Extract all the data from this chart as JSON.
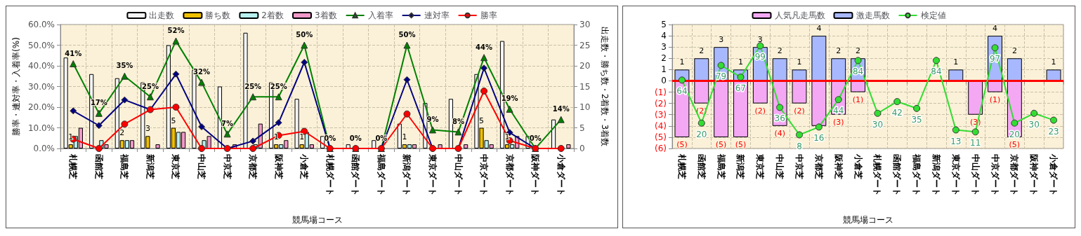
{
  "chart_data": [
    {
      "type": "bar",
      "xlabel": "競馬場コース",
      "ylabel": "勝率・連対率・入着率(%)",
      "y2label": "出走数・勝ち数・2着数・3着数",
      "categories": [
        "札幌芝",
        "函館芝",
        "福島芝",
        "新潟芝",
        "東京芝",
        "中山芝",
        "中京芝",
        "京都芝",
        "阪神芝",
        "小倉芝",
        "札幌ダート",
        "函館ダート",
        "福島ダート",
        "新潟ダート",
        "東京ダート",
        "中山ダート",
        "中京ダート",
        "京都ダート",
        "阪神ダート",
        "小倉ダート"
      ],
      "series": [
        {
          "name": "出走数",
          "type": "bar",
          "axis": "y2",
          "color": "#f4f4f4",
          "values": [
            22,
            18,
            17,
            16,
            25,
            19,
            15,
            28,
            16,
            12,
            3,
            1,
            2,
            6,
            11,
            12,
            18,
            26,
            3,
            7
          ]
        },
        {
          "name": "勝ち数",
          "type": "bar",
          "axis": "y2",
          "color": "#f0c000",
          "values": [
            1,
            0,
            2,
            3,
            5,
            0,
            0,
            0,
            1,
            1,
            0,
            0,
            0,
            1,
            0,
            0,
            5,
            1,
            0,
            0
          ],
          "value_labels": [
            "1",
            null,
            "2",
            "3",
            "5",
            null,
            null,
            null,
            "1",
            "1",
            null,
            null,
            null,
            "1",
            null,
            null,
            "5",
            "1",
            null,
            null
          ]
        },
        {
          "name": "2着数",
          "type": "bar",
          "axis": "y2",
          "color": "#b8f0f0",
          "values": [
            3,
            2,
            2,
            0,
            4,
            2,
            0,
            1,
            1,
            4,
            0,
            0,
            0,
            1,
            0,
            0,
            2,
            1,
            0,
            0
          ]
        },
        {
          "name": "3着数",
          "type": "bar",
          "axis": "y2",
          "color": "#f098c8",
          "values": [
            5,
            1,
            2,
            1,
            4,
            3,
            1,
            6,
            2,
            1,
            0,
            0,
            0,
            1,
            1,
            1,
            1,
            3,
            0,
            1
          ]
        },
        {
          "name": "入着率",
          "type": "line",
          "color": "#008000",
          "marker": "triangle",
          "values": [
            41,
            17,
            35,
            25,
            52,
            32,
            7,
            25,
            25,
            50,
            0,
            0,
            0,
            50,
            9,
            8,
            44,
            19,
            0,
            14
          ],
          "value_labels": [
            "41%",
            "17%",
            "35%",
            "25%",
            "52%",
            "32%",
            "7%",
            "25%",
            "25%",
            "50%",
            "0%",
            "0%",
            "0%",
            "50%",
            "9%",
            "8%",
            "44%",
            "19%",
            "0%",
            "14%"
          ]
        },
        {
          "name": "連対率",
          "type": "line",
          "color": "#000080",
          "marker": "diamond",
          "values": [
            18.2,
            11.1,
            23.5,
            18.8,
            36,
            10.5,
            0,
            3.6,
            12.5,
            41.7,
            0,
            0,
            0,
            33.3,
            0,
            0,
            38.9,
            7.7,
            0,
            0
          ]
        },
        {
          "name": "勝率",
          "type": "line",
          "color": "#ff0000",
          "marker": "circle",
          "values": [
            4.5,
            0,
            11.8,
            18.8,
            20,
            0,
            0,
            0,
            6.3,
            8.3,
            0,
            0,
            0,
            16.7,
            0,
            0,
            27.8,
            3.8,
            0,
            0
          ]
        }
      ],
      "ylim": [
        0,
        60
      ],
      "yticks": [
        {
          "value": 0,
          "label": "0.0%"
        },
        {
          "value": 10,
          "label": "10.0%"
        },
        {
          "value": 20,
          "label": "20.0%"
        },
        {
          "value": 30,
          "label": "30.0%"
        },
        {
          "value": 40,
          "label": "40.0%"
        },
        {
          "value": 50,
          "label": "50.0%"
        },
        {
          "value": 60,
          "label": "60.0%"
        }
      ],
      "y2lim": [
        0,
        30
      ],
      "y2ticks": [
        0,
        5,
        10,
        15,
        20,
        25,
        30
      ],
      "grid": true,
      "legend": "top"
    },
    {
      "type": "bar",
      "xlabel": "競馬場コース",
      "stacked": true,
      "categories": [
        "札幌芝",
        "函館芝",
        "福島芝",
        "新潟芝",
        "東京芝",
        "中山芝",
        "中京芝",
        "京都芝",
        "阪神芝",
        "小倉芝",
        "札幌ダート",
        "函館ダート",
        "福島ダート",
        "新潟ダート",
        "東京ダート",
        "中山ダート",
        "中京ダート",
        "京都ダート",
        "阪神ダート",
        "小倉ダート"
      ],
      "series": [
        {
          "name": "人気凡走馬数",
          "type": "bar",
          "color": "#f4a8f4",
          "values": [
            -5,
            -2,
            -5,
            -5,
            -2,
            -4,
            -2,
            -4,
            -3,
            -1,
            0,
            0,
            0,
            0,
            0,
            -3,
            -1,
            -5,
            0,
            0
          ],
          "value_labels": [
            "(5)",
            "(2)",
            "(5)",
            "(5)",
            "(2)",
            "(4)",
            "(2)",
            null,
            "(3)",
            "(1)",
            null,
            null,
            null,
            null,
            null,
            "(3)",
            "(1)",
            "(5)",
            null,
            null
          ]
        },
        {
          "name": "激走馬数",
          "type": "bar",
          "color": "#a8b8ff",
          "values": [
            1,
            2,
            3,
            1,
            3,
            2,
            1,
            4,
            2,
            2,
            0,
            0,
            0,
            0,
            1,
            0,
            4,
            2,
            0,
            1
          ],
          "value_labels": [
            "1",
            "2",
            "3",
            "1",
            "3",
            "2",
            "1",
            "4",
            "2",
            "2",
            null,
            null,
            null,
            null,
            "1",
            null,
            "4",
            "2",
            null,
            "1"
          ]
        },
        {
          "name": "検定値",
          "type": "line",
          "axis": "y2",
          "color": "#33dd33",
          "marker": "circle",
          "values": [
            64,
            20,
            79,
            67,
            99,
            36,
            8,
            16,
            44,
            84,
            30,
            42,
            35,
            84,
            13,
            11,
            97,
            20,
            30,
            23
          ],
          "data_labels": true
        }
      ],
      "ylim": [
        -6,
        5
      ],
      "yticks": [
        {
          "value": -6,
          "label": "(6)"
        },
        {
          "value": -5,
          "label": "(5)"
        },
        {
          "value": -4,
          "label": "(4)"
        },
        {
          "value": -3,
          "label": "(3)"
        },
        {
          "value": -2,
          "label": "(2)"
        },
        {
          "value": -1,
          "label": "(1)"
        },
        0,
        1,
        2,
        3,
        4,
        5
      ],
      "ref_lines": [
        {
          "axis": "y",
          "value": 0,
          "color": "#ff0000"
        }
      ],
      "grid": true,
      "legend": "top"
    }
  ]
}
